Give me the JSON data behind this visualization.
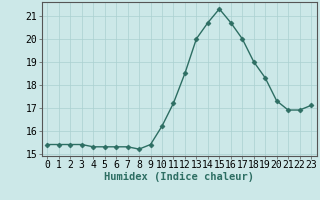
{
  "x": [
    0,
    1,
    2,
    3,
    4,
    5,
    6,
    7,
    8,
    9,
    10,
    11,
    12,
    13,
    14,
    15,
    16,
    17,
    18,
    19,
    20,
    21,
    22,
    23
  ],
  "y": [
    15.4,
    15.4,
    15.4,
    15.4,
    15.3,
    15.3,
    15.3,
    15.3,
    15.2,
    15.4,
    16.2,
    17.2,
    18.5,
    20.0,
    20.7,
    21.3,
    20.7,
    20.0,
    19.0,
    18.3,
    17.3,
    16.9,
    16.9,
    17.1
  ],
  "line_color": "#2d6e63",
  "marker": "D",
  "marker_size": 2.5,
  "bg_color": "#cce8e8",
  "grid_color": "#aad0d0",
  "xlabel": "Humidex (Indice chaleur)",
  "ylim": [
    14.9,
    21.6
  ],
  "xlim": [
    -0.5,
    23.5
  ],
  "yticks": [
    15,
    16,
    17,
    18,
    19,
    20,
    21
  ],
  "xticks": [
    0,
    1,
    2,
    3,
    4,
    5,
    6,
    7,
    8,
    9,
    10,
    11,
    12,
    13,
    14,
    15,
    16,
    17,
    18,
    19,
    20,
    21,
    22,
    23
  ],
  "xlabel_fontsize": 7.5,
  "tick_fontsize": 7,
  "line_width": 1.0
}
